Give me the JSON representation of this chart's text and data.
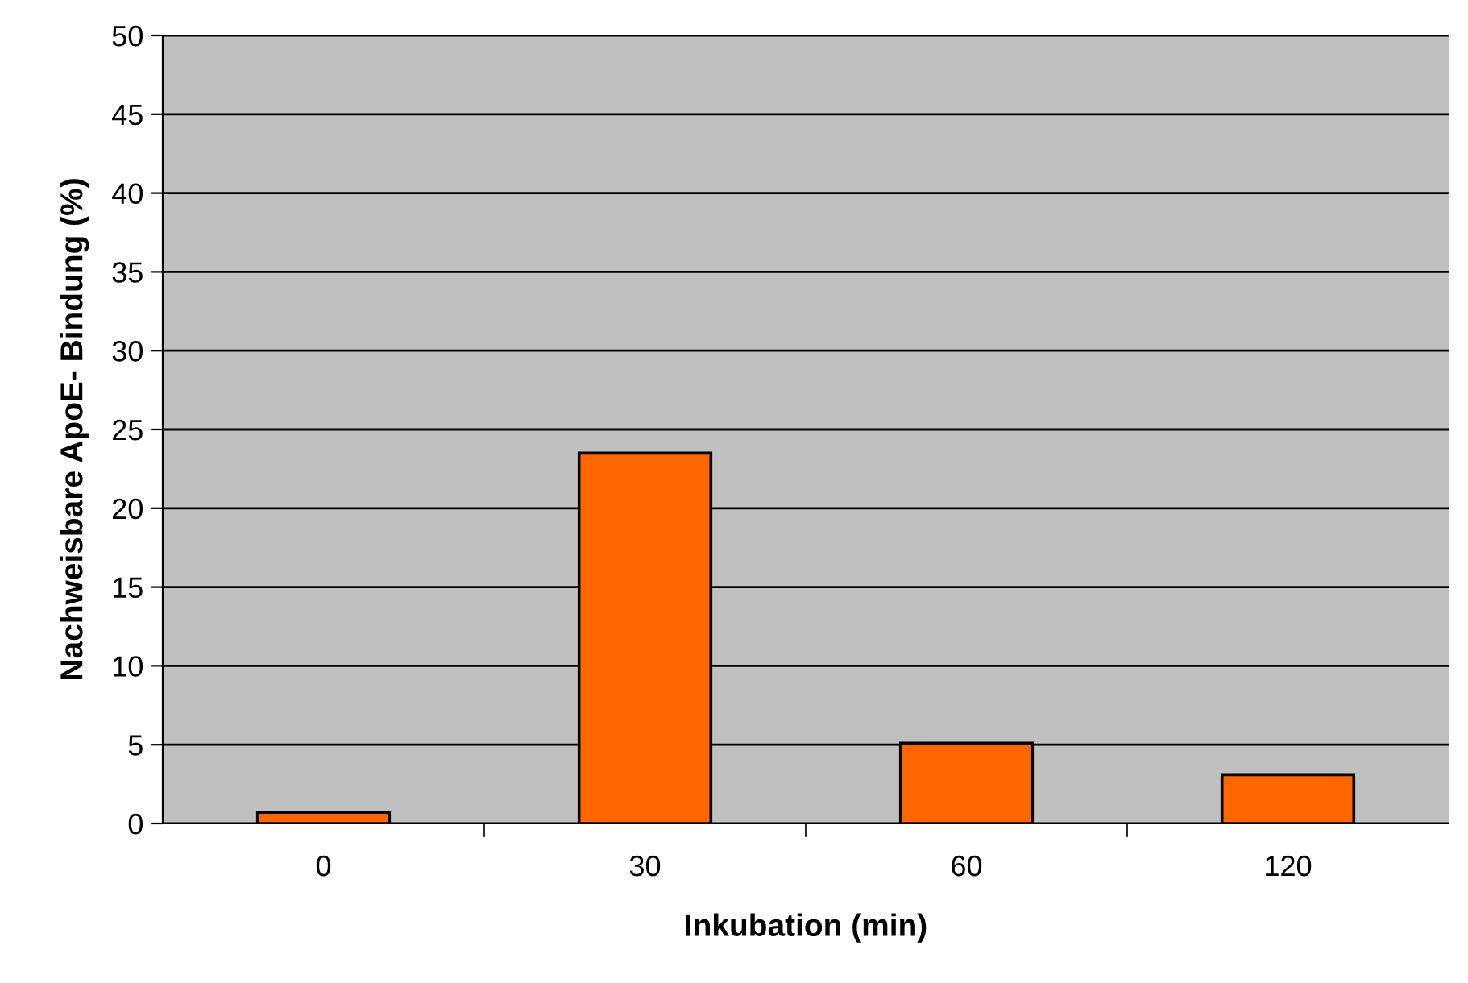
{
  "chart_data": {
    "type": "bar",
    "xlabel": "Inkubation (min)",
    "ylabel": "Nachweisbare ApoE- Bindung (%)",
    "categories": [
      "0",
      "30",
      "60",
      "120"
    ],
    "values": [
      0.7,
      23.5,
      5.1,
      3.1
    ],
    "color": "#ff6600",
    "ylim": [
      0,
      50
    ],
    "yticks": [
      0,
      5,
      10,
      15,
      20,
      25,
      30,
      35,
      40,
      45,
      50
    ],
    "grid": "y"
  }
}
